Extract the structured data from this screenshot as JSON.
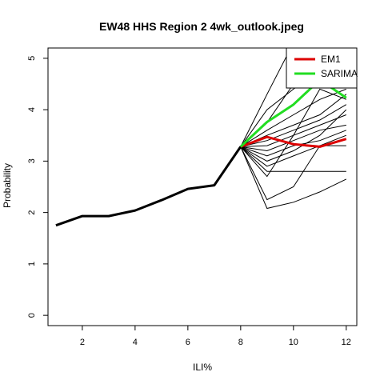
{
  "chart_data": {
    "type": "line",
    "title": "EW48 HHS Region 2 4wk_outlook.jpeg",
    "xlabel": "ILI%",
    "ylabel": "Probability",
    "xlim": [
      0.7,
      12.4
    ],
    "ylim": [
      -0.2,
      5.2
    ],
    "xticks": [
      2,
      4,
      6,
      8,
      10,
      12
    ],
    "yticks": [
      0,
      1,
      2,
      3,
      4,
      5
    ],
    "legend_position": "top-right",
    "history": {
      "color": "#000000",
      "x": [
        1,
        2,
        3,
        4,
        5,
        6,
        7,
        8
      ],
      "values": [
        1.75,
        1.93,
        1.93,
        2.04,
        2.24,
        2.46,
        2.53,
        3.28
      ]
    },
    "ensemble": {
      "color": "#000000",
      "x": [
        8,
        9,
        10,
        11,
        12
      ],
      "members": [
        [
          3.28,
          3.75,
          4.5,
          5.5,
          5.5
        ],
        [
          3.28,
          4.3,
          5.3,
          5.4,
          5.4
        ],
        [
          3.28,
          4.0,
          4.4,
          4.8,
          5.0
        ],
        [
          3.28,
          3.6,
          3.9,
          4.2,
          4.4
        ],
        [
          3.28,
          3.4,
          3.6,
          3.8,
          4.1
        ],
        [
          3.28,
          3.3,
          3.5,
          3.7,
          3.9
        ],
        [
          3.28,
          3.2,
          3.4,
          3.6,
          3.7
        ],
        [
          3.28,
          3.1,
          3.3,
          3.4,
          3.6
        ],
        [
          3.28,
          2.8,
          2.8,
          2.8,
          2.8
        ],
        [
          3.28,
          2.9,
          3.1,
          3.3,
          3.3
        ],
        [
          3.28,
          2.7,
          3.5,
          4.4,
          4.2
        ],
        [
          3.28,
          2.25,
          2.5,
          3.3,
          3.5
        ],
        [
          3.28,
          2.08,
          2.2,
          2.4,
          2.65
        ],
        [
          3.28,
          3.0,
          3.2,
          3.5,
          4.0
        ],
        [
          3.28,
          3.5,
          3.7,
          3.9,
          4.3
        ]
      ]
    },
    "series": [
      {
        "name": "EM1",
        "color": "#dd0000",
        "x": [
          8,
          9,
          10,
          11,
          12
        ],
        "values": [
          3.28,
          3.47,
          3.33,
          3.28,
          3.43
        ]
      },
      {
        "name": "SARIMA",
        "color": "#22dd22",
        "x": [
          8,
          9,
          10,
          11,
          12
        ],
        "values": [
          3.28,
          3.76,
          4.1,
          4.58,
          4.23
        ]
      }
    ]
  }
}
